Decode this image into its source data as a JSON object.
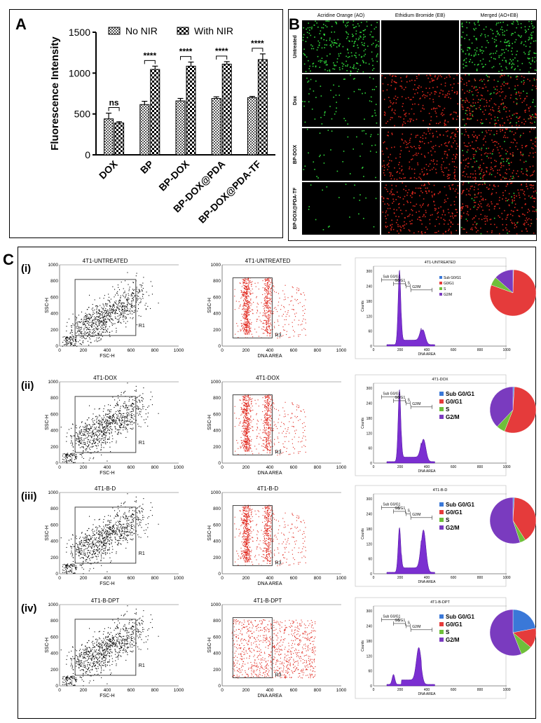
{
  "panels": {
    "a": "A",
    "b": "B",
    "c": "C"
  },
  "colors": {
    "red": "#e0261c",
    "purple": "#7b2fd1",
    "pie_red": "#e53b3b",
    "pie_blue": "#3a78d8",
    "pie_green": "#6fbf3a",
    "pie_purple": "#7a3bbf",
    "ao_green": "#2fd43a",
    "eb_red": "#d8261c"
  },
  "chart_data": [
    {
      "type": "bar",
      "panel": "A",
      "ylabel": "Fluorescence Intensity",
      "ylim": [
        0,
        1500
      ],
      "yticks": [
        "0",
        "500",
        "1000",
        "1500"
      ],
      "categories": [
        "DOX",
        "BP",
        "BP-DOX",
        "BP-DOX@PDA",
        "BP-DOX@PDA-TF"
      ],
      "series": [
        {
          "name": "No NIR",
          "values": [
            440,
            615,
            660,
            690,
            700
          ],
          "errors": [
            70,
            40,
            30,
            20,
            15
          ]
        },
        {
          "name": "With NIR",
          "values": [
            390,
            1045,
            1085,
            1110,
            1165
          ],
          "errors": [
            15,
            40,
            50,
            30,
            70
          ]
        }
      ],
      "annotations": [
        "ns",
        "****",
        "****",
        "****",
        "****"
      ]
    },
    {
      "type": "table",
      "panel": "B",
      "columns": [
        "Acridine Orange (AO)",
        "Ethidium Bromide (EB)",
        "Merged (AO+EB)"
      ],
      "rows": [
        "Untreated",
        "Dox",
        "BP-DOX",
        "BP-DOX@PDA-TF"
      ],
      "green_density": [
        1.0,
        0.25,
        0.15,
        0.08
      ],
      "red_density": [
        0.0,
        0.75,
        0.8,
        0.85
      ]
    },
    {
      "type": "scatter",
      "panel": "C",
      "rows": [
        {
          "label": "(i)",
          "title": "4T1-UNTREATED",
          "dna_title": "4T1-UNTREATED",
          "hist_title": "4T1-UNTREATED",
          "gate1": "R1",
          "gate3": "R3",
          "hist_peaks": [
            [
              195,
              300
            ],
            [
              370,
              60
            ]
          ],
          "legend": [
            "Sub G0/G1",
            "G0/G1",
            "S",
            "G2/M"
          ],
          "pie": [
            0.5,
            80,
            6,
            13.5
          ]
        },
        {
          "label": "(ii)",
          "title": "4T1-DOX",
          "dna_title": "4T1-DOX",
          "hist_title": "4T1-DOX",
          "gate1": "R1",
          "gate3": "R3",
          "hist_peaks": [
            [
              195,
              290
            ],
            [
              375,
              90
            ]
          ],
          "legend": [
            "Sub G0/G1",
            "G0/G1",
            "S",
            "G2/M"
          ],
          "pie": [
            1,
            55,
            6,
            38
          ]
        },
        {
          "label": "(iii)",
          "title": "4T1-B-D",
          "dna_title": "4T1-B-D",
          "hist_title": "4T1-B-D",
          "gate1": "R1",
          "gate3": "R3",
          "hist_peaks": [
            [
              195,
              180
            ],
            [
              375,
              170
            ]
          ],
          "legend": [
            "Sub G0/G1",
            "G0/G1",
            "S",
            "G2/M"
          ],
          "pie": [
            1,
            40,
            4,
            55
          ]
        },
        {
          "label": "(iv)",
          "title": "4T1-B-DPT",
          "dna_title": "4T1-B-DPT",
          "hist_title": "4T1-B-DPT",
          "gate1": "R1",
          "gate3": "R3",
          "hist_peaks": [
            [
              150,
              40
            ],
            [
              340,
              130
            ]
          ],
          "legend": [
            "Sub G0/G1",
            "G0/G1",
            "S",
            "G2/M"
          ],
          "pie": [
            22,
            14,
            8,
            56
          ]
        }
      ],
      "fsc_xlabel": "FSC-H",
      "ssc_ylabel": "SSC-H",
      "dna_xlabel": "DNA AREA",
      "hist_ylabel": "Counts",
      "axis_ticks": [
        "0",
        "200",
        "400",
        "600",
        "800",
        "1000"
      ],
      "hist_yticks": [
        "0",
        "60",
        "120",
        "180",
        "240",
        "300"
      ],
      "gate_labels": [
        "Sub G0/G1",
        "G0/G1",
        "S",
        "G2/M"
      ]
    }
  ]
}
